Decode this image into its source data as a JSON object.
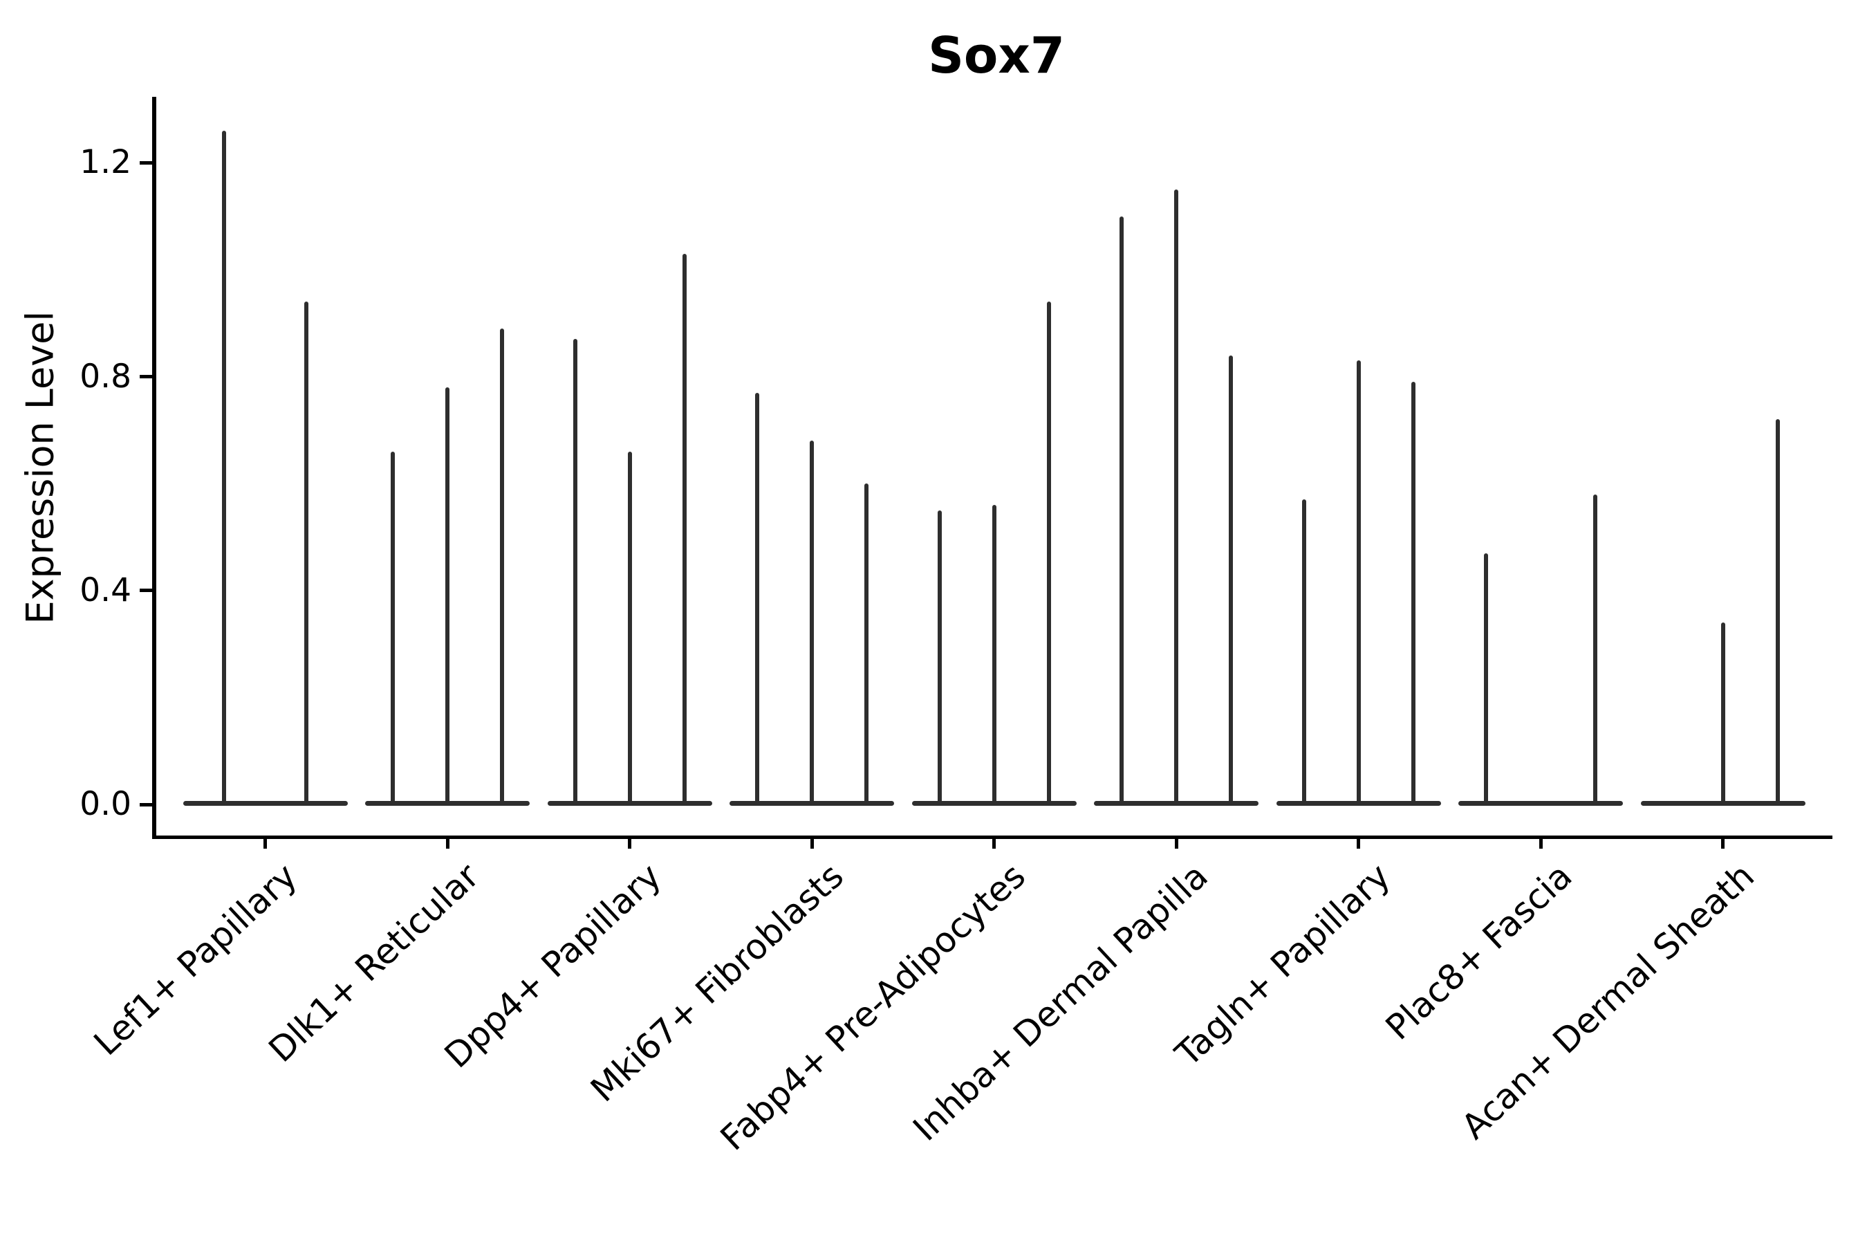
{
  "title": "Sox7",
  "chart_data": {
    "type": "violin",
    "title": "Sox7",
    "xlabel": "",
    "ylabel": "Expression Level",
    "yticks": [
      {
        "label": "0.0",
        "value": 0.0
      },
      {
        "label": "0.4",
        "value": 0.4
      },
      {
        "label": "0.8",
        "value": 0.8
      },
      {
        "label": "1.2",
        "value": 1.2
      }
    ],
    "ylim": [
      -0.06,
      1.38
    ],
    "grid": false,
    "legend": "none",
    "violin_color": "#2e2e2e",
    "axis_color": "#000000",
    "description": "Very narrow violin plots (expression mostly zero) shown as a flat base at 0 with a thin vertical density spike per violin; the max value is the top of each spike.",
    "categories": [
      "Lef1+ Papillary",
      "Dlk1+ Reticular",
      "Dpp4+ Papillary",
      "Mki67+ Fibroblasts",
      "Fabp4+ Pre-Adipocytes",
      "Inhba+ Dermal Papilla",
      "Tagln+ Papillary",
      "Plac8+ Fascia",
      "Acan+ Dermal Sheath"
    ],
    "groups": [
      {
        "category": "Lef1+ Papillary",
        "violins": [
          {
            "slot": -0.75,
            "max": 1.26
          },
          {
            "slot": 0.75,
            "max": 0.94
          }
        ]
      },
      {
        "category": "Dlk1+ Reticular",
        "violins": [
          {
            "slot": -1,
            "max": 0.66
          },
          {
            "slot": 0,
            "max": 0.78
          },
          {
            "slot": 1,
            "max": 0.89
          }
        ]
      },
      {
        "category": "Dpp4+ Papillary",
        "violins": [
          {
            "slot": -1,
            "max": 0.87
          },
          {
            "slot": 0,
            "max": 0.66
          },
          {
            "slot": 1,
            "max": 1.03
          }
        ]
      },
      {
        "category": "Mki67+ Fibroblasts",
        "violins": [
          {
            "slot": -1,
            "max": 0.77
          },
          {
            "slot": 0,
            "max": 0.68
          },
          {
            "slot": 1,
            "max": 0.6
          }
        ]
      },
      {
        "category": "Fabp4+ Pre-Adipocytes",
        "violins": [
          {
            "slot": -1,
            "max": 0.55
          },
          {
            "slot": 0,
            "max": 0.56
          },
          {
            "slot": 1,
            "max": 0.94
          }
        ]
      },
      {
        "category": "Inhba+ Dermal Papilla",
        "violins": [
          {
            "slot": -1,
            "max": 1.1
          },
          {
            "slot": 0,
            "max": 1.15
          },
          {
            "slot": 1,
            "max": 0.84
          }
        ]
      },
      {
        "category": "Tagln+ Papillary",
        "violins": [
          {
            "slot": -1,
            "max": 0.57
          },
          {
            "slot": 0,
            "max": 0.83
          },
          {
            "slot": 1,
            "max": 0.79
          }
        ]
      },
      {
        "category": "Plac8+ Fascia",
        "violins": [
          {
            "slot": -1,
            "max": 0.47
          },
          {
            "slot": 0,
            "max": null
          },
          {
            "slot": 1,
            "max": 0.58
          }
        ]
      },
      {
        "category": "Acan+ Dermal Sheath",
        "violins": [
          {
            "slot": -1,
            "max": null
          },
          {
            "slot": 0,
            "max": 0.34
          },
          {
            "slot": 1,
            "max": 0.72
          }
        ]
      }
    ]
  }
}
